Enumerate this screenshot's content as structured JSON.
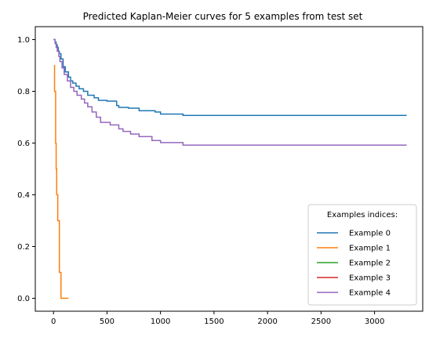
{
  "chart_data": {
    "type": "line",
    "title": "Predicted Kaplan-Meier curves for 5 examples from test set",
    "xlabel": "",
    "ylabel": "",
    "xlim": [
      -170,
      3450
    ],
    "ylim": [
      -0.05,
      1.05
    ],
    "x_ticks": [
      0,
      500,
      1000,
      1500,
      2000,
      2500,
      3000
    ],
    "y_ticks": [
      0.0,
      0.2,
      0.4,
      0.6,
      0.8,
      1.0
    ],
    "y_tick_labels": [
      "0.0",
      "0.2",
      "0.4",
      "0.6",
      "0.8",
      "1.0"
    ],
    "grid": false,
    "legend": {
      "title": "Examples indices:",
      "position": "lower-right"
    },
    "series": [
      {
        "name": "Example 0",
        "color": "#1f77b4",
        "step": true,
        "x": [
          0,
          15,
          25,
          35,
          45,
          55,
          70,
          90,
          110,
          140,
          160,
          180,
          210,
          240,
          280,
          320,
          380,
          420,
          500,
          590,
          610,
          700,
          800,
          950,
          1000,
          1210,
          3300
        ],
        "y": [
          1.0,
          0.99,
          0.98,
          0.97,
          0.955,
          0.945,
          0.925,
          0.895,
          0.875,
          0.855,
          0.84,
          0.832,
          0.82,
          0.81,
          0.8,
          0.785,
          0.775,
          0.765,
          0.762,
          0.745,
          0.738,
          0.735,
          0.725,
          0.72,
          0.712,
          0.707,
          0.707
        ]
      },
      {
        "name": "Example 1",
        "color": "#ff7f0e",
        "step": true,
        "x": [
          5,
          10,
          20,
          25,
          30,
          40,
          55,
          70,
          140
        ],
        "y": [
          0.9,
          0.8,
          0.6,
          0.5,
          0.4,
          0.3,
          0.1,
          0.0,
          0.0
        ]
      },
      {
        "name": "Example 2",
        "color": "#2ca02c",
        "step": true,
        "x": [],
        "y": []
      },
      {
        "name": "Example 3",
        "color": "#d62728",
        "step": true,
        "x": [],
        "y": []
      },
      {
        "name": "Example 4",
        "color": "#9467bd",
        "step": true,
        "x": [
          0,
          15,
          25,
          35,
          50,
          60,
          80,
          100,
          130,
          160,
          190,
          220,
          260,
          290,
          320,
          360,
          400,
          440,
          530,
          610,
          650,
          720,
          800,
          920,
          1000,
          1210,
          3300
        ],
        "y": [
          1.0,
          0.985,
          0.97,
          0.955,
          0.935,
          0.915,
          0.89,
          0.865,
          0.84,
          0.815,
          0.8,
          0.785,
          0.77,
          0.755,
          0.74,
          0.72,
          0.7,
          0.68,
          0.67,
          0.655,
          0.645,
          0.635,
          0.625,
          0.61,
          0.602,
          0.592,
          0.592
        ]
      }
    ]
  }
}
